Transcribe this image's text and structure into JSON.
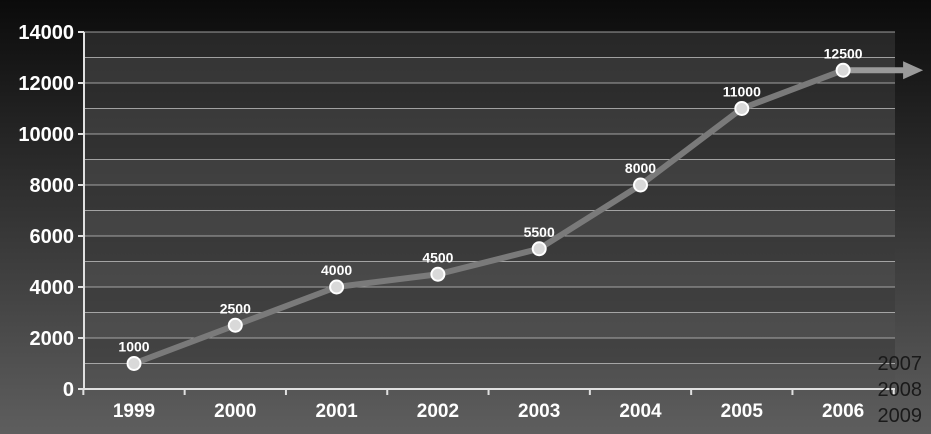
{
  "chart_data": {
    "type": "line",
    "categories": [
      "1999",
      "2000",
      "2001",
      "2002",
      "2003",
      "2004",
      "2005",
      "2006"
    ],
    "values": [
      1000,
      2500,
      4000,
      4500,
      5500,
      8000,
      11000,
      12500
    ],
    "data_labels": [
      "1000",
      "2500",
      "4000",
      "4500",
      "5500",
      "8000",
      "11000",
      "12500"
    ],
    "y_ticks": [
      "0",
      "2000",
      "4000",
      "6000",
      "8000",
      "10000",
      "12000",
      "14000"
    ],
    "ylim": [
      0,
      14000
    ],
    "grid": true,
    "extra_year_labels": [
      "2007",
      "2008",
      "2009"
    ],
    "colors": {
      "line": "#7a7a7a",
      "marker_fill": "#d9d9d9",
      "marker_stroke": "#ffffff",
      "arrow": "#9a9a9a",
      "band_dark": "#3a3a3a",
      "band_light": "#505050",
      "gridline": "#bdbdbd"
    }
  }
}
